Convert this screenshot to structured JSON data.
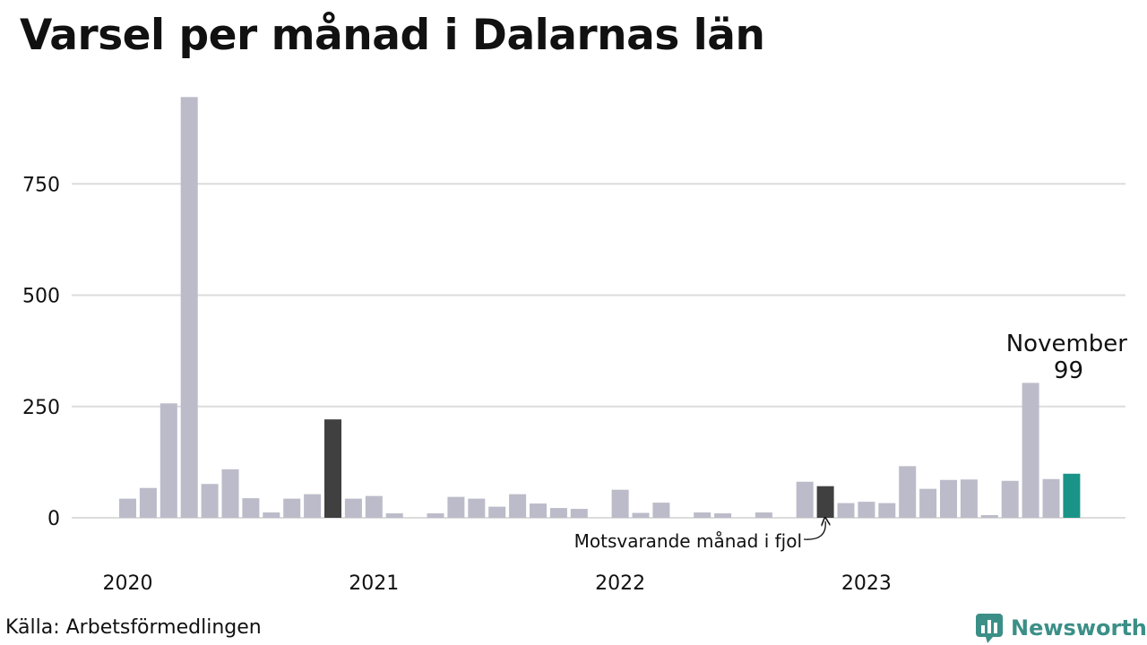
{
  "title": "Varsel per månad i Dalarnas län",
  "source": "Källa: Arbetsförmedlingen",
  "brand": {
    "name": "Newsworthy",
    "icon": "newsworthy-logo-icon",
    "color": "#3b8f87"
  },
  "colors": {
    "default": "#bcbbc9",
    "previous_year": "#404040",
    "current": "#1a9488",
    "grid": "#dcdcdc"
  },
  "chart_data": {
    "type": "bar",
    "title": "Varsel per månad i Dalarnas län",
    "ylim": [
      0,
      950
    ],
    "y_ticks": [
      0,
      250,
      500,
      750
    ],
    "grid": true,
    "x_tick_labels": [
      {
        "label": "2020",
        "index": 0
      },
      {
        "label": "2021",
        "index": 12
      },
      {
        "label": "2022",
        "index": 24
      },
      {
        "label": "2023",
        "index": 36
      }
    ],
    "categories": [
      "2020-01",
      "2020-02",
      "2020-03",
      "2020-04",
      "2020-05",
      "2020-06",
      "2020-07",
      "2020-08",
      "2020-09",
      "2020-10",
      "2020-11",
      "2020-12",
      "2021-01",
      "2021-02",
      "2021-03",
      "2021-04",
      "2021-05",
      "2021-06",
      "2021-07",
      "2021-08",
      "2021-09",
      "2021-10",
      "2021-11",
      "2021-12",
      "2022-01",
      "2022-02",
      "2022-03",
      "2022-04",
      "2022-05",
      "2022-06",
      "2022-07",
      "2022-08",
      "2022-09",
      "2022-10",
      "2022-11",
      "2022-12",
      "2023-01",
      "2023-02",
      "2023-03",
      "2023-04",
      "2023-05",
      "2023-06",
      "2023-07",
      "2023-08",
      "2023-09",
      "2023-10",
      "2023-11"
    ],
    "values": [
      43,
      67,
      257,
      945,
      76,
      109,
      44,
      12,
      43,
      53,
      221,
      43,
      49,
      10,
      0,
      10,
      47,
      43,
      25,
      53,
      32,
      22,
      20,
      0,
      63,
      11,
      34,
      0,
      12,
      10,
      0,
      12,
      0,
      81,
      71,
      33,
      36,
      33,
      116,
      65,
      85,
      86,
      6,
      83,
      303,
      87,
      99
    ],
    "highlight": {
      "previous_year": [
        10,
        34
      ],
      "current": [
        46
      ]
    },
    "annotations": [
      {
        "label": "November",
        "value_label": "99",
        "index": 46
      },
      {
        "label": "Motsvarande månad i fjol",
        "index": 34
      }
    ]
  }
}
